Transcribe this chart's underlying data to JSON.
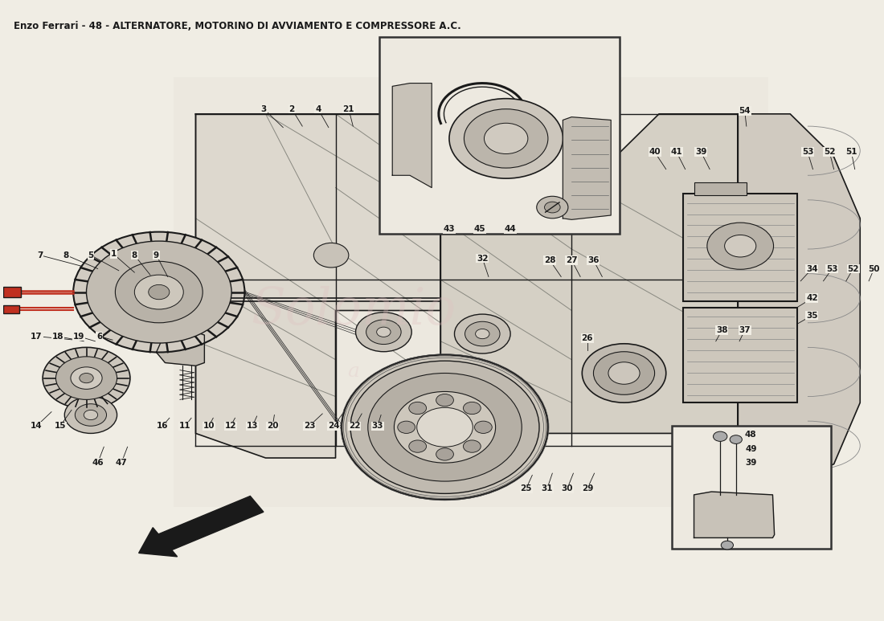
{
  "title": "Enzo Ferrari - 48 - ALTERNATORE, MOTORINO DI AVVIAMENTO E COMPRESSORE A.C.",
  "title_fontsize": 8.5,
  "bg_color": "#f0ede4",
  "line_color": "#1a1a1a",
  "text_color": "#1a1a1a",
  "fig_width": 11.0,
  "fig_height": 7.73,
  "dpi": 100
}
